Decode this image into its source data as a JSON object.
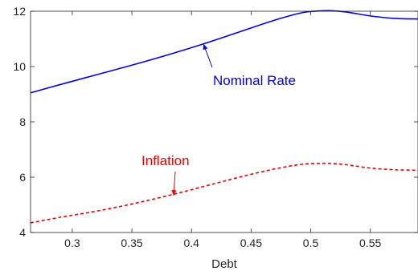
{
  "chart_data": {
    "type": "line",
    "title": "",
    "xlabel": "Debt",
    "ylabel": "",
    "xlim": [
      0.265,
      0.59
    ],
    "ylim": [
      4,
      12
    ],
    "grid": false,
    "x_ticks": [
      "0.3",
      "0.35",
      "0.4",
      "0.45",
      "0.5",
      "0.55"
    ],
    "y_ticks": [
      "4",
      "6",
      "8",
      "10",
      "12"
    ],
    "series": [
      {
        "name": "Nominal Rate",
        "color": "#0000ee",
        "line_style": "solid",
        "x": [
          0.265,
          0.29,
          0.32,
          0.35,
          0.38,
          0.41,
          0.44,
          0.47,
          0.49,
          0.5,
          0.515,
          0.53,
          0.55,
          0.57,
          0.59
        ],
        "y": [
          9.05,
          9.35,
          9.7,
          10.05,
          10.42,
          10.82,
          11.25,
          11.68,
          11.92,
          11.99,
          12.02,
          11.97,
          11.83,
          11.74,
          11.72
        ]
      },
      {
        "name": "Inflation",
        "color": "#ee0000",
        "line_style": "dashed",
        "x": [
          0.265,
          0.29,
          0.32,
          0.35,
          0.38,
          0.41,
          0.44,
          0.47,
          0.49,
          0.5,
          0.515,
          0.53,
          0.55,
          0.57,
          0.59
        ],
        "y": [
          4.35,
          4.55,
          4.77,
          5.03,
          5.33,
          5.66,
          6.0,
          6.3,
          6.45,
          6.49,
          6.5,
          6.45,
          6.33,
          6.27,
          6.25
        ]
      }
    ],
    "annotations": [
      {
        "text": "Nominal Rate",
        "series": "Nominal Rate",
        "arrow_to": [
          0.41,
          10.82
        ]
      },
      {
        "text": "Inflation",
        "series": "Inflation",
        "arrow_to": [
          0.385,
          5.33
        ]
      }
    ]
  }
}
